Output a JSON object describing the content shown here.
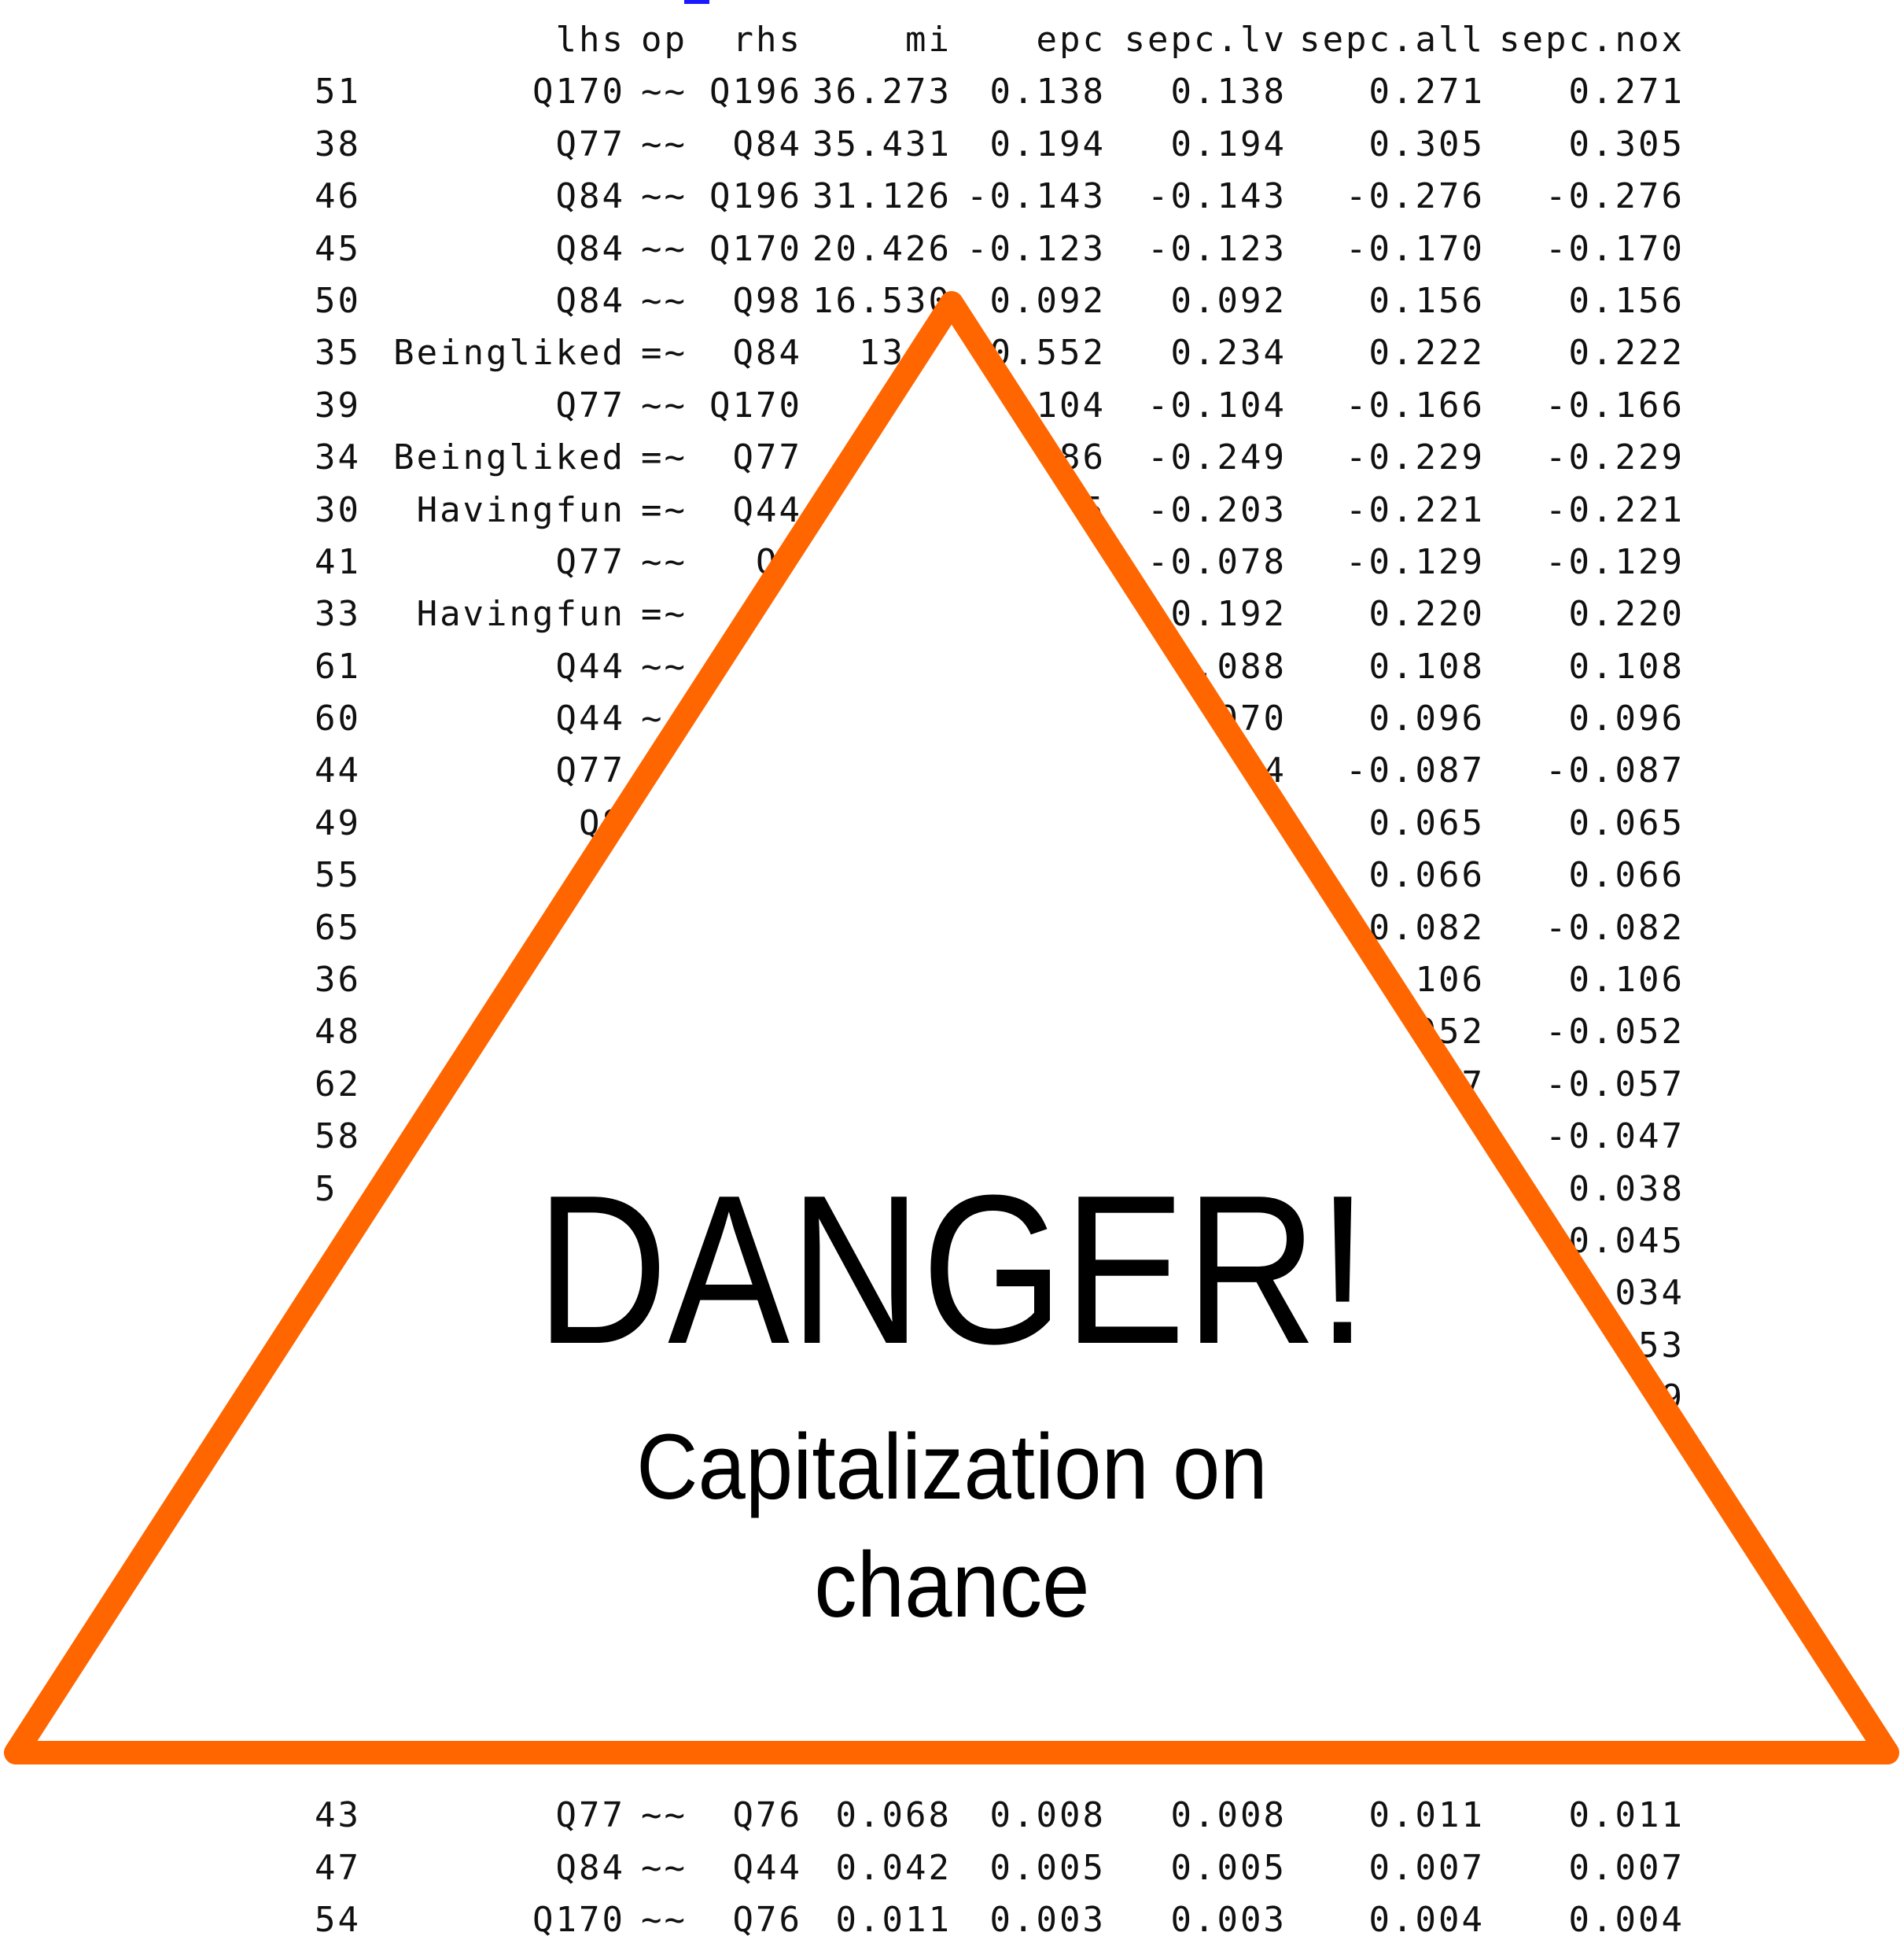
{
  "table": {
    "headers": {
      "idx": "",
      "lhs": "lhs",
      "op": "op",
      "rhs": "rhs",
      "mi": "mi",
      "epc": "epc",
      "sepc_lv": "sepc.lv",
      "sepc_all": "sepc.all",
      "sepc_nox": "sepc.nox"
    },
    "rows": [
      {
        "idx": "51",
        "lhs": "Q170",
        "op": "~~",
        "rhs": "Q196",
        "mi": "36.273",
        "epc": "0.138",
        "sepc_lv": "0.138",
        "sepc_all": "0.271",
        "sepc_nox": "0.271"
      },
      {
        "idx": "38",
        "lhs": "Q77",
        "op": "~~",
        "rhs": "Q84",
        "mi": "35.431",
        "epc": "0.194",
        "sepc_lv": "0.194",
        "sepc_all": "0.305",
        "sepc_nox": "0.305"
      },
      {
        "idx": "46",
        "lhs": "Q84",
        "op": "~~",
        "rhs": "Q196",
        "mi": "31.126",
        "epc": "-0.143",
        "sepc_lv": "-0.143",
        "sepc_all": "-0.276",
        "sepc_nox": "-0.276"
      },
      {
        "idx": "45",
        "lhs": "Q84",
        "op": "~~",
        "rhs": "Q170",
        "mi": "20.426",
        "epc": "-0.123",
        "sepc_lv": "-0.123",
        "sepc_all": "-0.170",
        "sepc_nox": "-0.170"
      },
      {
        "idx": "50",
        "lhs": "Q84",
        "op": "~~",
        "rhs": "Q98",
        "mi": "16.530",
        "epc": "0.092",
        "sepc_lv": "0.092",
        "sepc_all": "0.156",
        "sepc_nox": "0.156"
      },
      {
        "idx": "35",
        "lhs": "Beingliked",
        "op": "=~",
        "rhs": "Q84",
        "mi": "13.0",
        "epc": "0.552",
        "sepc_lv": "0.234",
        "sepc_all": "0.222",
        "sepc_nox": "0.222"
      },
      {
        "idx": "39",
        "lhs": "Q77",
        "op": "~~",
        "rhs": "Q170",
        "mi": "12",
        "epc": "104",
        "sepc_lv": "-0.104",
        "sepc_all": "-0.166",
        "sepc_nox": "-0.166"
      },
      {
        "idx": "34",
        "lhs": "Beingliked",
        "op": "=~",
        "rhs": "Q77",
        "mi": "1",
        "epc": "586",
        "sepc_lv": "-0.249",
        "sepc_all": "-0.229",
        "sepc_nox": "-0.229"
      },
      {
        "idx": "30",
        "lhs": "Havingfun",
        "op": "=~",
        "rhs": "Q44",
        "mi": "",
        "epc": "5",
        "sepc_lv": "-0.203",
        "sepc_all": "-0.221",
        "sepc_nox": "-0.221"
      },
      {
        "idx": "41",
        "lhs": "Q77",
        "op": "~~",
        "rhs": "Q4",
        "mi": "",
        "epc": "",
        "sepc_lv": "-0.078",
        "sepc_all": "-0.129",
        "sepc_nox": "-0.129"
      },
      {
        "idx": "33",
        "lhs": "Havingfun",
        "op": "=~",
        "rhs": "",
        "mi": "",
        "epc": "",
        "sepc_lv": "0.192",
        "sepc_all": "0.220",
        "sepc_nox": "0.220"
      },
      {
        "idx": "61",
        "lhs": "Q44",
        "op": "~~",
        "rhs": "",
        "mi": "",
        "epc": "",
        "sepc_lv": ".088",
        "sepc_all": "0.108",
        "sepc_nox": "0.108"
      },
      {
        "idx": "60",
        "lhs": "Q44",
        "op": "~",
        "rhs": "",
        "mi": "",
        "epc": "",
        "sepc_lv": "070",
        "sepc_all": "0.096",
        "sepc_nox": "0.096"
      },
      {
        "idx": "44",
        "lhs": "Q77",
        "op": "",
        "rhs": "",
        "mi": "",
        "epc": "",
        "sepc_lv": "4",
        "sepc_all": "-0.087",
        "sepc_nox": "-0.087"
      },
      {
        "idx": "49",
        "lhs": "Q8",
        "op": "",
        "rhs": "",
        "mi": "",
        "epc": "",
        "sepc_lv": "",
        "sepc_all": "0.065",
        "sepc_nox": "0.065"
      },
      {
        "idx": "55",
        "lhs": "Q1",
        "op": "",
        "rhs": "",
        "mi": "",
        "epc": "",
        "sepc_lv": "",
        "sepc_all": "0.066",
        "sepc_nox": "0.066"
      },
      {
        "idx": "65",
        "lhs": "",
        "op": "",
        "rhs": "",
        "mi": "",
        "epc": "",
        "sepc_lv": "",
        "sepc_all": "0.082",
        "sepc_nox": "-0.082"
      },
      {
        "idx": "36",
        "lhs": "Being",
        "op": "",
        "rhs": "",
        "mi": "",
        "epc": "",
        "sepc_lv": "",
        "sepc_all": ".106",
        "sepc_nox": "0.106"
      },
      {
        "idx": "48",
        "lhs": "",
        "op": "",
        "rhs": "",
        "mi": "",
        "epc": "",
        "sepc_lv": "",
        "sepc_all": "052",
        "sepc_nox": "-0.052"
      },
      {
        "idx": "62",
        "lhs": "",
        "op": "",
        "rhs": "",
        "mi": "",
        "epc": "",
        "sepc_lv": "",
        "sepc_all": "7",
        "sepc_nox": "-0.057"
      },
      {
        "idx": "58",
        "lhs": "",
        "op": "",
        "rhs": "",
        "mi": "",
        "epc": "",
        "sepc_lv": "",
        "sepc_all": "",
        "sepc_nox": "-0.047"
      },
      {
        "idx": "5",
        "lhs": "",
        "op": "",
        "rhs": "",
        "mi": "",
        "epc": "",
        "sepc_lv": "",
        "sepc_all": "",
        "sepc_nox": "0.038"
      },
      {
        "idx": "",
        "lhs": "",
        "op": "",
        "rhs": "",
        "mi": "",
        "epc": "",
        "sepc_lv": "",
        "sepc_all": "",
        "sepc_nox": "0.045"
      },
      {
        "idx": "",
        "lhs": "",
        "op": "",
        "rhs": "",
        "mi": "",
        "epc": "",
        "sepc_lv": "",
        "sepc_all": "",
        "sepc_nox": "034"
      },
      {
        "idx": "",
        "lhs": "",
        "op": "",
        "rhs": "",
        "mi": "",
        "epc": "",
        "sepc_lv": "",
        "sepc_all": "",
        "sepc_nox": "53"
      },
      {
        "idx": "",
        "lhs": "",
        "op": "",
        "rhs": "",
        "mi": "",
        "epc": "",
        "sepc_lv": "",
        "sepc_all": "",
        "sepc_nox": "9"
      },
      {
        "idx": "",
        "lhs": "",
        "op": "",
        "rhs": "",
        "mi": "",
        "epc": "",
        "sepc_lv": "",
        "sepc_all": "",
        "sepc_nox": ""
      },
      {
        "idx": "",
        "lhs": "",
        "op": "",
        "rhs": "",
        "mi": "",
        "epc": "",
        "sepc_lv": "",
        "sepc_all": "",
        "sepc_nox": ""
      },
      {
        "idx": "",
        "lhs": "",
        "op": "",
        "rhs": "",
        "mi": "",
        "epc": "",
        "sepc_lv": "",
        "sepc_all": "",
        "sepc_nox": ""
      },
      {
        "idx": "",
        "lhs": "",
        "op": "",
        "rhs": "",
        "mi": "",
        "epc": "",
        "sepc_lv": "",
        "sepc_all": "",
        "sepc_nox": ""
      },
      {
        "idx": "",
        "lhs": "",
        "op": "",
        "rhs": "",
        "mi": "",
        "epc": "",
        "sepc_lv": "",
        "sepc_all": "",
        "sepc_nox": ""
      },
      {
        "idx": "",
        "lhs": "",
        "op": "",
        "rhs": "",
        "mi": "",
        "epc": "",
        "sepc_lv": "",
        "sepc_all": "",
        "sepc_nox": ""
      },
      {
        "idx": "",
        "lhs": "",
        "op": "",
        "rhs": "",
        "mi": "",
        "epc": "",
        "sepc_lv": "",
        "sepc_all": "",
        "sepc_nox": ""
      },
      {
        "idx": "43",
        "lhs": "Q77",
        "op": "~~",
        "rhs": "Q76",
        "mi": "0.068",
        "epc": "0.008",
        "sepc_lv": "0.008",
        "sepc_all": "0.011",
        "sepc_nox": "0.011"
      },
      {
        "idx": "47",
        "lhs": "Q84",
        "op": "~~",
        "rhs": "Q44",
        "mi": "0.042",
        "epc": "0.005",
        "sepc_lv": "0.005",
        "sepc_all": "0.007",
        "sepc_nox": "0.007"
      },
      {
        "idx": "54",
        "lhs": "Q170",
        "op": "~~",
        "rhs": "Q76",
        "mi": "0.011",
        "epc": "0.003",
        "sepc_lv": "0.003",
        "sepc_all": "0.004",
        "sepc_nox": "0.004"
      }
    ]
  },
  "warning": {
    "title": "DANGER!",
    "subtitle_line1": "Capitalization on",
    "subtitle_line2": "chance",
    "stroke_color": "#ff6600",
    "fill_color": "#ffffff",
    "icon": "warning-triangle-icon"
  }
}
